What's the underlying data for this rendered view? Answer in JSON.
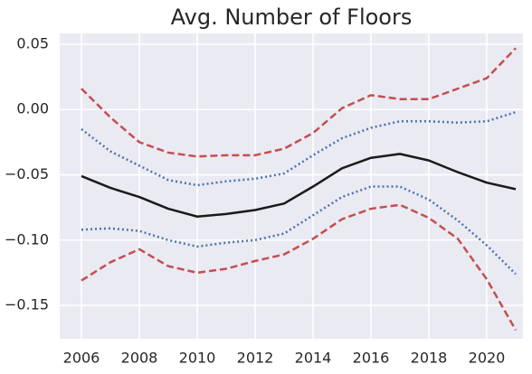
{
  "chart_data": {
    "type": "line",
    "title": "Avg. Number of Floors",
    "x": [
      2006,
      2007,
      2008,
      2009,
      2010,
      2011,
      2012,
      2013,
      2014,
      2015,
      2016,
      2017,
      2018,
      2019,
      2020,
      2021
    ],
    "series": [
      {
        "color": "#c44e52",
        "dash": "dashed",
        "values": [
          0.016,
          -0.006,
          -0.025,
          -0.033,
          -0.036,
          -0.035,
          -0.035,
          -0.03,
          -0.018,
          0.001,
          0.011,
          0.008,
          0.008,
          0.016,
          0.024,
          0.047
        ]
      },
      {
        "color": "#4c72b0",
        "dash": "dotted",
        "values": [
          -0.015,
          -0.032,
          -0.043,
          -0.054,
          -0.058,
          -0.055,
          -0.053,
          -0.049,
          -0.035,
          -0.022,
          -0.014,
          -0.009,
          -0.009,
          -0.01,
          -0.009,
          -0.002
        ]
      },
      {
        "color": "#1a1a1a",
        "dash": "solid",
        "values": [
          -0.051,
          -0.06,
          -0.067,
          -0.076,
          -0.082,
          -0.08,
          -0.077,
          -0.072,
          -0.059,
          -0.045,
          -0.037,
          -0.034,
          -0.039,
          -0.048,
          -0.056,
          -0.061
        ]
      },
      {
        "color": "#4c72b0",
        "dash": "dotted",
        "values": [
          -0.092,
          -0.091,
          -0.093,
          -0.1,
          -0.105,
          -0.102,
          -0.1,
          -0.095,
          -0.081,
          -0.067,
          -0.059,
          -0.059,
          -0.069,
          -0.085,
          -0.104,
          -0.126
        ]
      },
      {
        "color": "#c44e52",
        "dash": "dashed",
        "values": [
          -0.131,
          -0.117,
          -0.107,
          -0.12,
          -0.125,
          -0.122,
          -0.116,
          -0.111,
          -0.099,
          -0.084,
          -0.076,
          -0.073,
          -0.083,
          -0.099,
          -0.13,
          -0.169
        ]
      }
    ],
    "xlim": [
      2005.25,
      2021.25
    ],
    "xticks": [
      2006,
      2008,
      2010,
      2012,
      2014,
      2016,
      2018,
      2020
    ],
    "ylim": [
      -0.1756,
      0.0583
    ],
    "yticks": [
      0.05,
      {
        "value": 0,
        "label": "0.00"
      },
      {
        "value": -0.05,
        "label": "−0.05"
      },
      {
        "value": -0.1,
        "label": "−0.10"
      },
      {
        "value": -0.15,
        "label": "−0.15"
      }
    ],
    "grid": true,
    "background": "#eaeaf2"
  }
}
